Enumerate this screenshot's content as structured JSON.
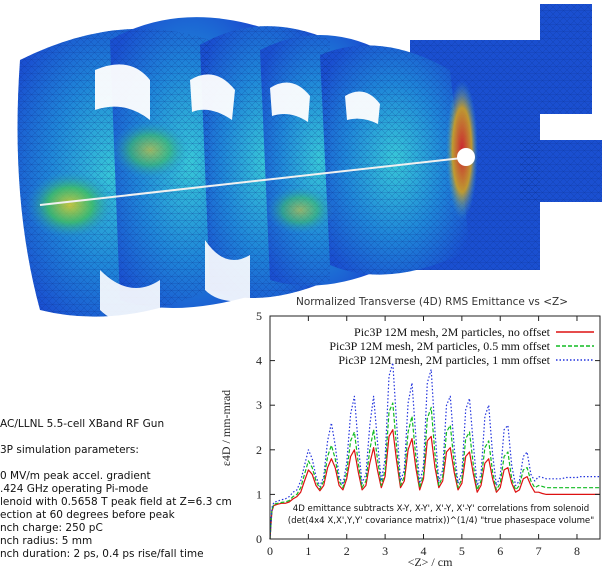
{
  "params": {
    "lines": [
      "AC/LLNL 5.5-cell XBand RF Gun",
      "",
      "3P simulation parameters:",
      "",
      "0 MV/m peak accel. gradient",
      ".424 GHz operating Pi-mode",
      "lenoid with 0.5658 T peak field at Z=6.3 cm",
      "ection at 60 degrees before peak",
      "nch charge: 250 pC",
      "nch radius: 5 mm",
      "nch duration: 2 ps, 0.4 ps rise/fall time"
    ]
  },
  "colors": {
    "red": "#dd1111",
    "green": "#11bb22",
    "blue": "#2233dd",
    "mesh_blue": "#1a4fd0",
    "mesh_cyan": "#22b8d8"
  },
  "chart_data": {
    "type": "line",
    "title": "Normalized Transverse (4D) RMS Emittance vs <Z>",
    "xlabel": "<Z> / cm",
    "ylabel": "ε4D / mm-mrad",
    "xlim": [
      0,
      8.6
    ],
    "ylim": [
      0,
      5
    ],
    "xticks": [
      "0",
      "1",
      "2",
      "3",
      "4",
      "5",
      "6",
      "7",
      "8"
    ],
    "yticks": [
      "0",
      "1",
      "2",
      "3",
      "4",
      "5"
    ],
    "legend_position": "top-right",
    "annotation_lines": [
      "4D emittance subtracts X-Y, X-Y', X'-Y, X'-Y' correlations from solenoid",
      "(det(4x4 X,X',Y,Y' covariance matrix))^(1/4) \"true phasespace volume\""
    ],
    "series": [
      {
        "name": "Pic3P 12M mesh, 2M particles, no offset",
        "color": "#dd1111",
        "style": "solid",
        "x": [
          0,
          0.05,
          0.1,
          0.2,
          0.3,
          0.4,
          0.5,
          0.6,
          0.7,
          0.8,
          0.9,
          1.0,
          1.1,
          1.2,
          1.3,
          1.4,
          1.5,
          1.6,
          1.7,
          1.8,
          1.9,
          2.0,
          2.1,
          2.2,
          2.3,
          2.4,
          2.5,
          2.6,
          2.7,
          2.8,
          2.9,
          3.0,
          3.1,
          3.2,
          3.3,
          3.4,
          3.5,
          3.6,
          3.7,
          3.8,
          3.9,
          4.0,
          4.1,
          4.2,
          4.3,
          4.4,
          4.5,
          4.6,
          4.7,
          4.8,
          4.9,
          5.0,
          5.1,
          5.2,
          5.3,
          5.4,
          5.5,
          5.6,
          5.7,
          5.8,
          5.9,
          6.0,
          6.1,
          6.2,
          6.3,
          6.4,
          6.5,
          6.6,
          6.7,
          6.8,
          6.9,
          7.0,
          7.1,
          7.2,
          7.3,
          7.4,
          7.5,
          7.6,
          7.7,
          7.8,
          7.9,
          8.0,
          8.1,
          8.2,
          8.3,
          8.4,
          8.5,
          8.6
        ],
        "y": [
          0.0,
          0.62,
          0.75,
          0.78,
          0.8,
          0.8,
          0.83,
          0.9,
          0.95,
          1.05,
          1.3,
          1.55,
          1.45,
          1.2,
          1.08,
          1.2,
          1.6,
          1.8,
          1.6,
          1.2,
          1.1,
          1.35,
          1.85,
          2.0,
          1.5,
          1.1,
          1.2,
          1.7,
          2.05,
          1.55,
          1.15,
          1.4,
          2.3,
          2.45,
          1.75,
          1.15,
          1.3,
          2.0,
          2.25,
          1.6,
          1.1,
          1.35,
          2.2,
          2.3,
          1.6,
          1.15,
          1.3,
          1.95,
          2.05,
          1.5,
          1.1,
          1.25,
          1.85,
          1.95,
          1.45,
          1.05,
          1.2,
          1.7,
          1.8,
          1.35,
          1.05,
          1.15,
          1.55,
          1.6,
          1.25,
          1.05,
          1.1,
          1.35,
          1.4,
          1.2,
          1.05,
          1.05,
          1.02,
          1.0,
          1.0,
          1.0,
          1.0,
          1.0,
          1.0,
          1.0,
          1.0,
          1.0,
          1.0,
          1.0,
          1.0,
          1.0,
          1.0,
          1.0
        ]
      },
      {
        "name": "Pic3P 12M mesh, 2M particles, 0.5 mm offset",
        "color": "#11bb22",
        "style": "dashed",
        "x": [
          0,
          0.05,
          0.1,
          0.2,
          0.3,
          0.4,
          0.5,
          0.6,
          0.7,
          0.8,
          0.9,
          1.0,
          1.1,
          1.2,
          1.3,
          1.4,
          1.5,
          1.6,
          1.7,
          1.8,
          1.9,
          2.0,
          2.1,
          2.2,
          2.3,
          2.4,
          2.5,
          2.6,
          2.7,
          2.8,
          2.9,
          3.0,
          3.1,
          3.2,
          3.3,
          3.4,
          3.5,
          3.6,
          3.7,
          3.8,
          3.9,
          4.0,
          4.1,
          4.2,
          4.3,
          4.4,
          4.5,
          4.6,
          4.7,
          4.8,
          4.9,
          5.0,
          5.1,
          5.2,
          5.3,
          5.4,
          5.5,
          5.6,
          5.7,
          5.8,
          5.9,
          6.0,
          6.1,
          6.2,
          6.3,
          6.4,
          6.5,
          6.6,
          6.7,
          6.8,
          6.9,
          7.0,
          7.1,
          7.2,
          7.3,
          7.4,
          7.5,
          7.6,
          7.7,
          7.8,
          7.9,
          8.0,
          8.1,
          8.2,
          8.3,
          8.4,
          8.5,
          8.6
        ],
        "y": [
          0.0,
          0.65,
          0.78,
          0.8,
          0.82,
          0.83,
          0.86,
          0.95,
          1.0,
          1.15,
          1.45,
          1.75,
          1.6,
          1.3,
          1.12,
          1.3,
          1.85,
          2.1,
          1.8,
          1.3,
          1.15,
          1.5,
          2.2,
          2.4,
          1.7,
          1.15,
          1.3,
          2.0,
          2.45,
          1.8,
          1.2,
          1.55,
          2.85,
          3.05,
          2.05,
          1.2,
          1.4,
          2.4,
          2.75,
          1.85,
          1.15,
          1.45,
          2.7,
          2.95,
          1.9,
          1.2,
          1.4,
          2.4,
          2.55,
          1.7,
          1.15,
          1.35,
          2.25,
          2.4,
          1.65,
          1.1,
          1.3,
          2.05,
          2.2,
          1.5,
          1.1,
          1.25,
          1.85,
          1.95,
          1.35,
          1.1,
          1.2,
          1.55,
          1.6,
          1.3,
          1.15,
          1.2,
          1.18,
          1.15,
          1.15,
          1.15,
          1.15,
          1.15,
          1.15,
          1.15,
          1.15,
          1.15,
          1.15,
          1.15,
          1.15,
          1.15,
          1.15,
          1.15
        ]
      },
      {
        "name": "Pic3P 12M mesh, 2M particles, 1 mm offset",
        "color": "#2233dd",
        "style": "dotted",
        "x": [
          0,
          0.05,
          0.1,
          0.2,
          0.3,
          0.4,
          0.5,
          0.6,
          0.7,
          0.8,
          0.9,
          1.0,
          1.1,
          1.2,
          1.3,
          1.4,
          1.5,
          1.6,
          1.7,
          1.8,
          1.9,
          2.0,
          2.1,
          2.2,
          2.3,
          2.4,
          2.5,
          2.6,
          2.7,
          2.8,
          2.9,
          3.0,
          3.1,
          3.2,
          3.3,
          3.4,
          3.5,
          3.6,
          3.7,
          3.8,
          3.9,
          4.0,
          4.1,
          4.2,
          4.3,
          4.4,
          4.5,
          4.6,
          4.7,
          4.8,
          4.9,
          5.0,
          5.1,
          5.2,
          5.3,
          5.4,
          5.5,
          5.6,
          5.7,
          5.8,
          5.9,
          6.0,
          6.1,
          6.2,
          6.3,
          6.4,
          6.5,
          6.6,
          6.7,
          6.8,
          6.9,
          7.0,
          7.1,
          7.2,
          7.3,
          7.4,
          7.5,
          7.6,
          7.7,
          7.8,
          7.9,
          8.0,
          8.1,
          8.2,
          8.3,
          8.4,
          8.5,
          8.6
        ],
        "y": [
          0.0,
          0.7,
          0.82,
          0.85,
          0.88,
          0.9,
          0.95,
          1.05,
          1.1,
          1.3,
          1.65,
          2.0,
          1.8,
          1.4,
          1.18,
          1.4,
          2.2,
          2.6,
          2.1,
          1.4,
          1.22,
          1.7,
          2.8,
          3.2,
          2.1,
          1.25,
          1.45,
          2.55,
          3.2,
          2.2,
          1.3,
          1.8,
          3.65,
          3.95,
          2.6,
          1.3,
          1.55,
          3.05,
          3.5,
          2.3,
          1.25,
          1.65,
          3.5,
          3.8,
          2.4,
          1.3,
          1.55,
          3.0,
          3.2,
          2.05,
          1.25,
          1.5,
          2.9,
          3.15,
          2.1,
          1.2,
          1.45,
          2.75,
          3.0,
          1.9,
          1.2,
          1.4,
          2.45,
          2.55,
          1.65,
          1.2,
          1.3,
          1.85,
          1.95,
          1.45,
          1.3,
          1.4,
          1.38,
          1.35,
          1.35,
          1.35,
          1.35,
          1.35,
          1.38,
          1.38,
          1.38,
          1.38,
          1.4,
          1.4,
          1.4,
          1.4,
          1.4,
          1.4
        ]
      }
    ]
  }
}
